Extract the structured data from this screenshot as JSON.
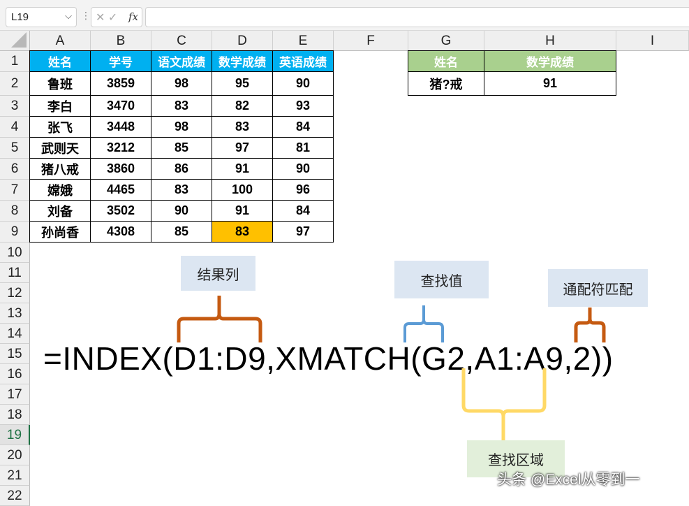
{
  "toolbar": {
    "name_box": "L19",
    "fx_label": "fx",
    "cancel_icon": "x-icon",
    "enter_icon": "check-icon",
    "formula_value": ""
  },
  "columns": [
    "A",
    "B",
    "C",
    "D",
    "E",
    "F",
    "G",
    "H",
    "I"
  ],
  "rows": [
    "1",
    "2",
    "3",
    "4",
    "5",
    "6",
    "7",
    "8",
    "9",
    "10",
    "11",
    "12",
    "13",
    "14",
    "15",
    "16",
    "17",
    "18",
    "19",
    "20",
    "21",
    "22"
  ],
  "selected_row": "19",
  "table": {
    "headers": [
      "姓名",
      "学号",
      "语文成绩",
      "数学成绩",
      "英语成绩"
    ],
    "rows": [
      [
        "鲁班",
        "3859",
        "98",
        "95",
        "90"
      ],
      [
        "李白",
        "3470",
        "83",
        "82",
        "93"
      ],
      [
        "张飞",
        "3448",
        "98",
        "83",
        "84"
      ],
      [
        "武则天",
        "3212",
        "85",
        "97",
        "81"
      ],
      [
        "猪八戒",
        "3860",
        "86",
        "91",
        "90"
      ],
      [
        "嫦娥",
        "4465",
        "83",
        "100",
        "96"
      ],
      [
        "刘备",
        "3502",
        "90",
        "91",
        "84"
      ],
      [
        "孙尚香",
        "4308",
        "85",
        "83",
        "97"
      ]
    ],
    "highlight_color": "#ffc000",
    "header_color": "#00b0f0"
  },
  "lookup": {
    "headers": [
      "姓名",
      "数学成绩"
    ],
    "values": [
      "猪?戒",
      "91"
    ],
    "header_color": "#a9d08e"
  },
  "annotations": {
    "result_col": "结果列",
    "lookup_value": "查找值",
    "wildcard": "通配符匹配",
    "lookup_range": "查找区域"
  },
  "formula": "=INDEX(D1:D9,XMATCH(G2,A1:A9,2))",
  "watermark": "头条 @Excel从零到一"
}
